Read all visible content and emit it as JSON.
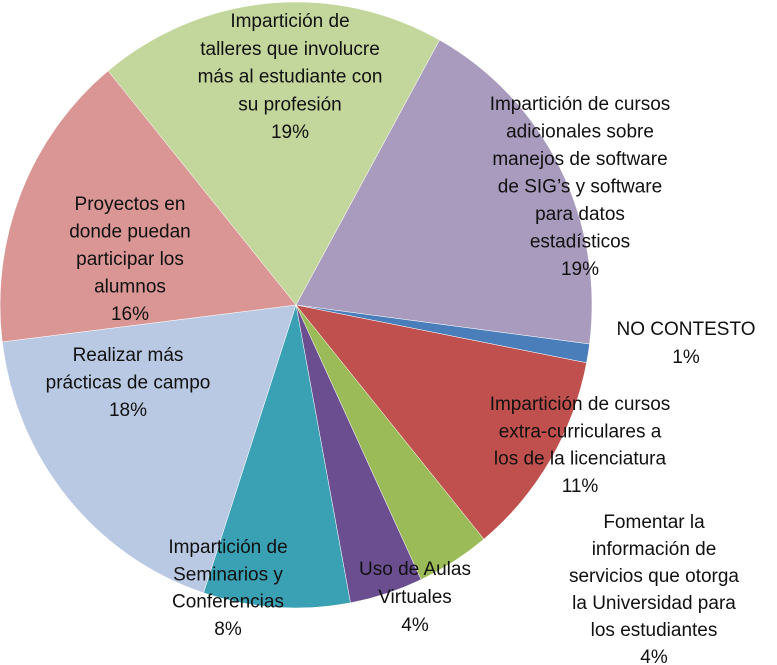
{
  "chart_data": {
    "type": "pie",
    "categories": [
      "Impartición de cursos\nadicionales sobre\nmanejos de software\nde SIG’s y  software\npara  datos\nestadísticos",
      "NO CONTESTO",
      "Impartición de cursos\nextra-curriculares a\nlos de la licenciatura",
      "Fomentar la\ninformación de\nservicios que otorga\nla Universidad para\nlos estudiantes",
      "Uso de Aulas\nVirtuales",
      "Impartición de\nSeminarios  y\nConferencias",
      "Realizar más\nprácticas de campo",
      "Proyectos en\ndonde puedan\nparticipar los\nalumnos",
      "Impartición de\ntalleres que involucre\nmás al estudiante con\nsu profesión"
    ],
    "values": [
      19,
      1,
      11,
      4,
      4,
      8,
      18,
      16,
      19
    ],
    "value_labels": [
      "19%",
      "1%",
      "11%",
      "4%",
      "4%",
      "8%",
      "18%",
      "16%",
      "19%"
    ],
    "colors": [
      "#a99bbd",
      "#4a7ebb",
      "#c0504d",
      "#9bbb59",
      "#6b4e8f",
      "#3aa0b3",
      "#b9c9e3",
      "#d99694",
      "#c3d69b"
    ]
  }
}
